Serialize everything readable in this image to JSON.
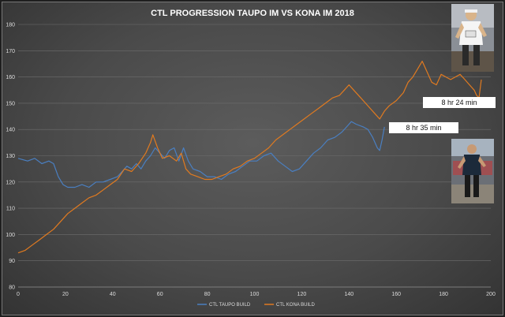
{
  "chart_data": {
    "type": "line",
    "title": "CTL PROGRESSION TAUPO IM VS KONA IM 2018",
    "xlabel": "",
    "ylabel": "",
    "xlim": [
      0,
      200
    ],
    "ylim": [
      80,
      180
    ],
    "x_ticks": [
      0,
      20,
      40,
      60,
      80,
      100,
      120,
      140,
      160,
      180,
      200
    ],
    "y_ticks": [
      80,
      90,
      100,
      110,
      120,
      130,
      140,
      150,
      160,
      170,
      180
    ],
    "grid": true,
    "legend_position": "bottom",
    "series": [
      {
        "name": "CTL TAUPO BUILD",
        "color": "#4a7fc1",
        "points": [
          [
            0,
            129
          ],
          [
            4,
            128
          ],
          [
            7,
            129
          ],
          [
            10,
            127
          ],
          [
            13,
            128
          ],
          [
            15,
            127
          ],
          [
            17,
            122
          ],
          [
            19,
            119
          ],
          [
            21,
            118
          ],
          [
            24,
            118
          ],
          [
            27,
            119
          ],
          [
            30,
            118
          ],
          [
            33,
            120
          ],
          [
            36,
            120
          ],
          [
            39,
            121
          ],
          [
            42,
            122
          ],
          [
            44,
            124
          ],
          [
            46,
            126
          ],
          [
            48,
            125
          ],
          [
            50,
            127
          ],
          [
            52,
            125
          ],
          [
            54,
            128
          ],
          [
            56,
            130
          ],
          [
            58,
            133
          ],
          [
            60,
            131
          ],
          [
            62,
            129
          ],
          [
            64,
            132
          ],
          [
            66,
            133
          ],
          [
            68,
            128
          ],
          [
            70,
            133
          ],
          [
            72,
            128
          ],
          [
            74,
            125
          ],
          [
            77,
            124
          ],
          [
            80,
            122
          ],
          [
            83,
            122
          ],
          [
            86,
            121
          ],
          [
            89,
            123
          ],
          [
            92,
            124
          ],
          [
            95,
            126
          ],
          [
            98,
            128
          ],
          [
            101,
            128
          ],
          [
            104,
            130
          ],
          [
            107,
            131
          ],
          [
            110,
            128
          ],
          [
            113,
            126
          ],
          [
            116,
            124
          ],
          [
            119,
            125
          ],
          [
            122,
            128
          ],
          [
            125,
            131
          ],
          [
            128,
            133
          ],
          [
            131,
            136
          ],
          [
            134,
            137
          ],
          [
            137,
            139
          ],
          [
            139,
            141
          ],
          [
            141,
            143
          ],
          [
            143,
            142
          ],
          [
            146,
            141
          ],
          [
            148,
            140
          ],
          [
            150,
            137
          ],
          [
            152,
            133
          ],
          [
            153,
            132
          ],
          [
            154,
            136
          ],
          [
            155,
            141
          ]
        ]
      },
      {
        "name": "CTL KONA BUILD",
        "color": "#e07a20",
        "points": [
          [
            0,
            93
          ],
          [
            3,
            94
          ],
          [
            6,
            96
          ],
          [
            9,
            98
          ],
          [
            12,
            100
          ],
          [
            15,
            102
          ],
          [
            18,
            105
          ],
          [
            21,
            108
          ],
          [
            24,
            110
          ],
          [
            27,
            112
          ],
          [
            30,
            114
          ],
          [
            33,
            115
          ],
          [
            36,
            117
          ],
          [
            39,
            119
          ],
          [
            42,
            121
          ],
          [
            45,
            125
          ],
          [
            48,
            124
          ],
          [
            51,
            127
          ],
          [
            54,
            131
          ],
          [
            56,
            135
          ],
          [
            57,
            138
          ],
          [
            59,
            133
          ],
          [
            61,
            129
          ],
          [
            64,
            130
          ],
          [
            67,
            128
          ],
          [
            69,
            131
          ],
          [
            71,
            125
          ],
          [
            73,
            123
          ],
          [
            76,
            122
          ],
          [
            79,
            121
          ],
          [
            82,
            121
          ],
          [
            85,
            122
          ],
          [
            88,
            123
          ],
          [
            91,
            125
          ],
          [
            94,
            126
          ],
          [
            97,
            128
          ],
          [
            100,
            129
          ],
          [
            103,
            131
          ],
          [
            106,
            133
          ],
          [
            109,
            136
          ],
          [
            112,
            138
          ],
          [
            115,
            140
          ],
          [
            118,
            142
          ],
          [
            121,
            144
          ],
          [
            124,
            146
          ],
          [
            127,
            148
          ],
          [
            130,
            150
          ],
          [
            133,
            152
          ],
          [
            136,
            153
          ],
          [
            138,
            155
          ],
          [
            140,
            157
          ],
          [
            142,
            155
          ],
          [
            145,
            152
          ],
          [
            147,
            150
          ],
          [
            149,
            148
          ],
          [
            151,
            146
          ],
          [
            153,
            144
          ],
          [
            155,
            147
          ],
          [
            157,
            149
          ],
          [
            160,
            151
          ],
          [
            163,
            154
          ],
          [
            165,
            158
          ],
          [
            167,
            160
          ],
          [
            169,
            163
          ],
          [
            171,
            166
          ],
          [
            173,
            162
          ],
          [
            175,
            158
          ],
          [
            177,
            157
          ],
          [
            179,
            161
          ],
          [
            181,
            160
          ],
          [
            183,
            159
          ],
          [
            185,
            160
          ],
          [
            187,
            161
          ],
          [
            189,
            159
          ],
          [
            191,
            157
          ],
          [
            193,
            155
          ],
          [
            194,
            153
          ],
          [
            195,
            152
          ],
          [
            196,
            159
          ]
        ]
      }
    ]
  },
  "annotations": {
    "kona_time": "8 hr 24 min",
    "taupo_time": "8 hr 35 min"
  }
}
